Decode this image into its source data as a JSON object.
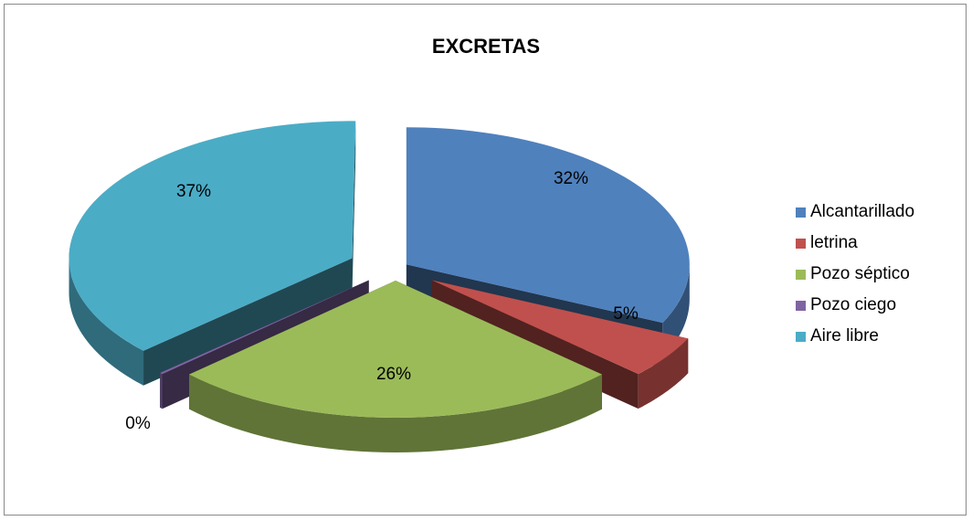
{
  "chart_data": {
    "type": "pie",
    "title": "EXCRETAS",
    "categories": [
      "Alcantarillado",
      "letrina",
      "Pozo séptico",
      "Pozo ciego",
      "Aire libre"
    ],
    "values": [
      32,
      5,
      26,
      0,
      37
    ],
    "value_labels": [
      "32%",
      "5%",
      "26%",
      "0%",
      "37%"
    ],
    "colors": [
      "#4f81bd",
      "#c0504d",
      "#9bbb59",
      "#8064a2",
      "#4bacc6"
    ],
    "style": "3d-exploded",
    "legend_position": "right"
  }
}
